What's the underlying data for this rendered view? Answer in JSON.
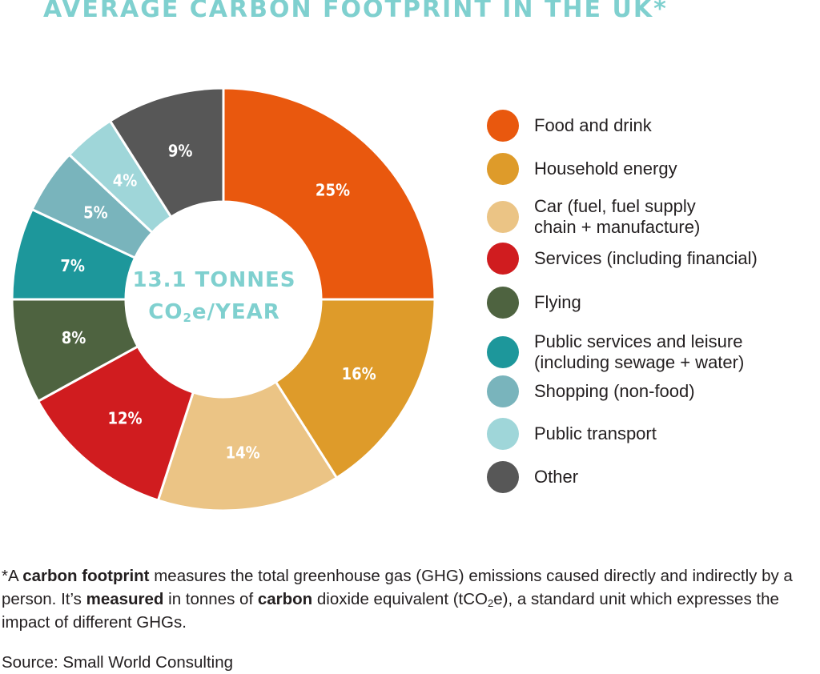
{
  "title": "AVERAGE CARBON FOOTPRINT IN THE UK*",
  "center": {
    "line1": "13.1 TONNES",
    "line2_pre": "CO",
    "line2_sub": "2",
    "line2_post": "e/YEAR"
  },
  "chart_data": {
    "type": "pie",
    "variant": "donut",
    "title": "AVERAGE CARBON FOOTPRINT IN THE UK*",
    "center_label": "13.1 TONNES CO2e/YEAR",
    "legend_position": "right",
    "slices": [
      {
        "label": "Food and drink",
        "value": 25,
        "display": "25%",
        "color": "#e9580e"
      },
      {
        "label": "Household energy",
        "value": 16,
        "display": "16%",
        "color": "#de9b2a"
      },
      {
        "label": "Car (fuel, fuel supply chain + manufacture)",
        "value": 14,
        "display": "14%",
        "color": "#ebc485"
      },
      {
        "label": "Services (including financial)",
        "value": 12,
        "display": "12%",
        "color": "#d01c1f"
      },
      {
        "label": "Flying",
        "value": 8,
        "display": "8%",
        "color": "#4e6340"
      },
      {
        "label": "Public services and leisure (including sewage + water)",
        "value": 7,
        "display": "7%",
        "color": "#1d979b"
      },
      {
        "label": "Shopping (non-food)",
        "value": 5,
        "display": "5%",
        "color": "#79b4bc"
      },
      {
        "label": "Public transport",
        "value": 4,
        "display": "4%",
        "color": "#9fd6d9"
      },
      {
        "label": "Other",
        "value": 9,
        "display": "9%",
        "color": "#575757"
      }
    ]
  },
  "legend": [
    {
      "line1": "Food and drink",
      "line2": ""
    },
    {
      "line1": "Household energy",
      "line2": ""
    },
    {
      "line1": "Car (fuel, fuel supply",
      "line2": "chain + manufacture)"
    },
    {
      "line1": "Services (including financial)",
      "line2": ""
    },
    {
      "line1": "Flying",
      "line2": ""
    },
    {
      "line1": "Public services and leisure",
      "line2": "(including sewage + water)"
    },
    {
      "line1": "Shopping (non-food)",
      "line2": ""
    },
    {
      "line1": "Public transport",
      "line2": ""
    },
    {
      "line1": "Other",
      "line2": ""
    }
  ],
  "footnote": {
    "t1": "*A ",
    "b1": "carbon footprint",
    "t2": " measures the total greenhouse gas (GHG) emissions caused directly and indirectly by a person. It’s ",
    "b2": "measured",
    "t3": " in tonnes of ",
    "b3": "carbon",
    "t4": " dioxide equivalent (tCO",
    "sub": "2",
    "t5": "e), a standard unit which expresses the impact of different GHGs."
  },
  "source": "Source: Small World Consulting"
}
